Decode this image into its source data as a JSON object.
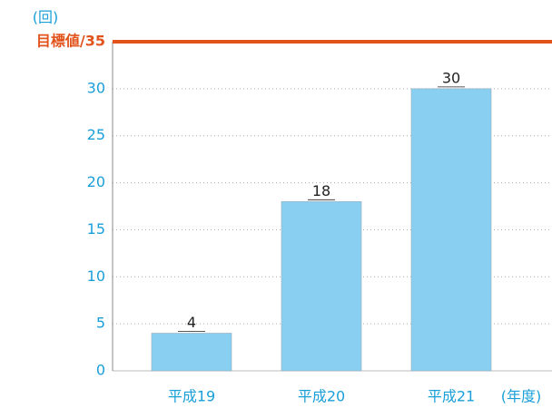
{
  "chart_data": {
    "type": "bar",
    "y_unit": "(回)",
    "x_unit": "(年度)",
    "categories": [
      "平成19",
      "平成20",
      "平成21"
    ],
    "values": [
      4,
      18,
      30
    ],
    "color": "#88cff1",
    "ylim": [
      0,
      35
    ],
    "yticks": [
      0,
      5,
      10,
      15,
      20,
      25,
      30
    ],
    "grid": true,
    "target_label": "目標値/35",
    "target_value": 35,
    "target_color": "#e2531c"
  }
}
